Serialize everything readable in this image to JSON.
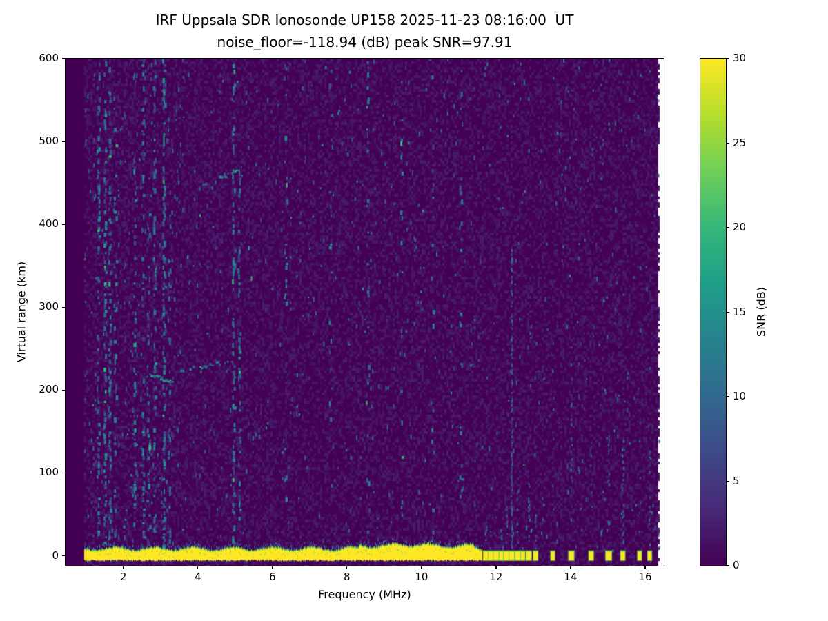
{
  "chart_data": {
    "type": "heatmap",
    "title": "IRF Uppsala SDR Ionosonde UP158 2025-11-23 08:16:00  UT",
    "subtitle": "noise_floor=-118.94 (dB) peak SNR=97.91",
    "station": "UP158",
    "timestamp_ut": "2025-11-23 08:16:00",
    "noise_floor_db": -118.94,
    "peak_snr_db": 97.91,
    "xlabel": "Frequency (MHz)",
    "ylabel": "Virtual range (km)",
    "xlim": [
      0.45,
      16.5
    ],
    "ylim": [
      -12,
      600
    ],
    "xticks": [
      2,
      4,
      6,
      8,
      10,
      12,
      14,
      16
    ],
    "yticks": [
      0,
      100,
      200,
      300,
      400,
      500,
      600
    ],
    "grid": false,
    "legend": "none",
    "colorbar": {
      "label": "SNR (dB)",
      "min": 0,
      "max": 30,
      "ticks": [
        0,
        5,
        10,
        15,
        20,
        25,
        30
      ],
      "colormap": "viridis",
      "colormap_stops": [
        "#440154",
        "#482878",
        "#3e4989",
        "#31688e",
        "#26828e",
        "#1f9e89",
        "#35b779",
        "#6ece58",
        "#b5de2b",
        "#fde725"
      ]
    },
    "background_color": "#440154",
    "features": {
      "data_f_start": 0.45,
      "signal_f_start": 0.95,
      "data_f_end": 16.35,
      "ground_band": {
        "f_start": 0.95,
        "f_end": 11.62,
        "range_km": [
          -6,
          9
        ],
        "snr_db": 30
      },
      "ground_blobs": [
        {
          "f": 11.72,
          "tail_km": 45
        },
        {
          "f": 11.86,
          "tail_km": 30
        },
        {
          "f": 12.0,
          "tail_km": 55
        },
        {
          "f": 12.14,
          "tail_km": 35
        },
        {
          "f": 12.28,
          "tail_km": 60
        },
        {
          "f": 12.42,
          "tail_km": 370,
          "tail_density": 0.6
        },
        {
          "f": 12.58,
          "tail_km": 80
        },
        {
          "f": 12.72,
          "tail_km": 40
        },
        {
          "f": 12.88,
          "tail_km": 90
        },
        {
          "f": 13.06,
          "tail_km": 50
        },
        {
          "f": 13.52,
          "tail_km": 180
        },
        {
          "f": 14.02,
          "tail_km": 260
        },
        {
          "f": 14.55,
          "tail_km": 200
        },
        {
          "f": 15.02,
          "tail_km": 160
        },
        {
          "f": 15.4,
          "tail_km": 140
        },
        {
          "f": 15.85,
          "tail_km": 170
        },
        {
          "f": 16.12,
          "tail_km": 130
        }
      ],
      "interference_stripes": [
        {
          "f": 1.32,
          "density": 0.3,
          "top_km": 600
        },
        {
          "f": 1.5,
          "density": 0.45,
          "top_km": 600
        },
        {
          "f": 1.63,
          "density": 0.35,
          "top_km": 600
        },
        {
          "f": 1.78,
          "density": 0.25,
          "top_km": 560
        },
        {
          "f": 2.3,
          "density": 0.25,
          "top_km": 520
        },
        {
          "f": 2.52,
          "density": 0.3,
          "top_km": 600
        },
        {
          "f": 2.67,
          "density": 0.25,
          "top_km": 470
        },
        {
          "f": 2.83,
          "density": 0.3,
          "top_km": 600
        },
        {
          "f": 3.08,
          "density": 0.5,
          "top_km": 600
        },
        {
          "f": 3.23,
          "density": 0.25,
          "top_km": 430
        },
        {
          "f": 4.95,
          "density": 0.4,
          "top_km": 600
        },
        {
          "f": 5.1,
          "density": 0.3,
          "top_km": 470
        },
        {
          "f": 6.35,
          "density": 0.1,
          "top_km": 600
        },
        {
          "f": 7.55,
          "density": 0.07,
          "top_km": 600
        },
        {
          "f": 8.55,
          "density": 0.1,
          "top_km": 600
        },
        {
          "f": 9.45,
          "density": 0.08,
          "top_km": 600
        },
        {
          "f": 10.3,
          "density": 0.12,
          "top_km": 600
        },
        {
          "f": 11.05,
          "density": 0.08,
          "top_km": 600
        }
      ],
      "echo_traces": [
        {
          "f": [
            2.62,
            3.32
          ],
          "km": [
            219,
            212
          ],
          "density": 0.85
        },
        {
          "f": [
            3.45,
            4.92
          ],
          "km": [
            224,
            237
          ],
          "density": 0.5
        },
        {
          "f": [
            4.05,
            5.2
          ],
          "km": [
            448,
            468
          ],
          "density": 0.35
        },
        {
          "f": [
            2.25,
            2.88
          ],
          "km": [
            150,
            12
          ],
          "density": 0.45
        },
        {
          "f": [
            1.92,
            2.22
          ],
          "km": [
            15,
            95
          ],
          "density": 0.35
        }
      ],
      "speckle": {
        "base_density": 0.02,
        "left_region_f_max": 3.6,
        "left_region_density": 0.055,
        "snr_range_db": [
          2,
          12
        ]
      }
    }
  }
}
